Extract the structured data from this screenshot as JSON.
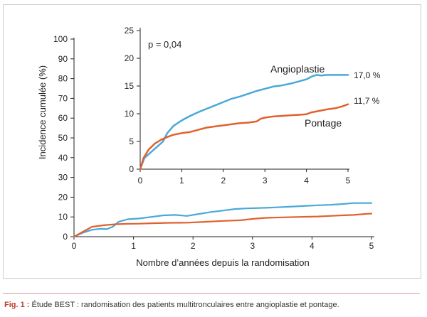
{
  "caption": {
    "label": "Fig. 1 :",
    "text": "Étude BEST : randomisation des patients multitronculaires entre angioplastie et pontage."
  },
  "chart_data": [
    {
      "type": "line",
      "xlabel": "Nombre d’années depuis la randomisation",
      "ylabel": "Incidence cumulée (%)",
      "xlim": [
        0,
        5
      ],
      "ylim": [
        0,
        100
      ],
      "xticks": [
        "0",
        "1",
        "2",
        "3",
        "4",
        "5"
      ],
      "yticks": [
        "0",
        "10",
        "20",
        "30",
        "40",
        "50",
        "60",
        "70",
        "80",
        "90",
        "100"
      ],
      "series": [
        {
          "color": "#4aa8d8",
          "x": [
            0,
            0.15,
            0.3,
            0.45,
            0.55,
            0.65,
            0.75,
            0.9,
            1.1,
            1.3,
            1.5,
            1.7,
            1.9,
            2.1,
            2.3,
            2.5,
            2.7,
            2.9,
            3.1,
            3.3,
            3.5,
            3.7,
            3.9,
            4.1,
            4.3,
            4.5,
            4.7,
            5.0
          ],
          "y": [
            0,
            2,
            3.5,
            4,
            3.8,
            5,
            7.5,
            8.8,
            9.2,
            10,
            10.8,
            11,
            10.5,
            11.5,
            12.5,
            13.2,
            14,
            14.3,
            14.5,
            14.7,
            15,
            15.3,
            15.6,
            15.9,
            16.1,
            16.5,
            17,
            17
          ]
        },
        {
          "color": "#e0612d",
          "x": [
            0,
            0.15,
            0.3,
            0.5,
            0.7,
            0.9,
            1.1,
            1.3,
            1.6,
            1.9,
            2.2,
            2.5,
            2.8,
            3.0,
            3.2,
            3.5,
            3.8,
            4.1,
            4.3,
            4.5,
            4.7,
            4.9,
            5.0
          ],
          "y": [
            0,
            2.5,
            5,
            5.8,
            6.3,
            6.5,
            6.6,
            6.8,
            7,
            7.1,
            7.5,
            8,
            8.3,
            9,
            9.5,
            9.8,
            10,
            10.2,
            10.5,
            10.8,
            11,
            11.5,
            11.7
          ]
        }
      ]
    },
    {
      "type": "line",
      "annotation": "p = 0,04",
      "xlim": [
        0,
        5
      ],
      "ylim": [
        0,
        25
      ],
      "xticks": [
        "0",
        "1",
        "2",
        "3",
        "4",
        "5"
      ],
      "yticks": [
        "0",
        "5",
        "10",
        "15",
        "20",
        "25"
      ],
      "series": [
        {
          "name": "Angioplastie",
          "end_label": "17,0 %",
          "color": "#4aa8d8",
          "x": [
            0,
            0.1,
            0.25,
            0.4,
            0.55,
            0.65,
            0.8,
            1.0,
            1.2,
            1.4,
            1.6,
            1.8,
            2.0,
            2.2,
            2.4,
            2.6,
            2.8,
            3.0,
            3.2,
            3.4,
            3.6,
            3.8,
            4.0,
            4.15,
            4.25,
            4.35,
            4.5,
            4.65,
            4.8,
            5.0
          ],
          "y": [
            0,
            2,
            3,
            4,
            5,
            6.5,
            7.8,
            8.8,
            9.6,
            10.3,
            10.9,
            11.5,
            12.1,
            12.7,
            13.1,
            13.6,
            14.1,
            14.5,
            14.9,
            15.1,
            15.4,
            15.8,
            16.2,
            16.8,
            17,
            16.9,
            17,
            17,
            17,
            17
          ]
        },
        {
          "name": "Pontage",
          "end_label": "11,7 %",
          "color": "#e0612d",
          "x": [
            0,
            0.08,
            0.2,
            0.35,
            0.5,
            0.65,
            0.8,
            1.0,
            1.2,
            1.4,
            1.6,
            1.8,
            2.0,
            2.2,
            2.4,
            2.6,
            2.8,
            2.9,
            3.0,
            3.2,
            3.4,
            3.6,
            3.8,
            4.0,
            4.1,
            4.3,
            4.5,
            4.7,
            4.85,
            5.0
          ],
          "y": [
            0,
            2,
            3.5,
            4.6,
            5.3,
            5.8,
            6.2,
            6.5,
            6.7,
            7.1,
            7.5,
            7.7,
            7.9,
            8.1,
            8.3,
            8.4,
            8.6,
            9.1,
            9.3,
            9.5,
            9.6,
            9.7,
            9.8,
            9.9,
            10.2,
            10.5,
            10.8,
            11,
            11.3,
            11.7
          ]
        }
      ]
    }
  ]
}
